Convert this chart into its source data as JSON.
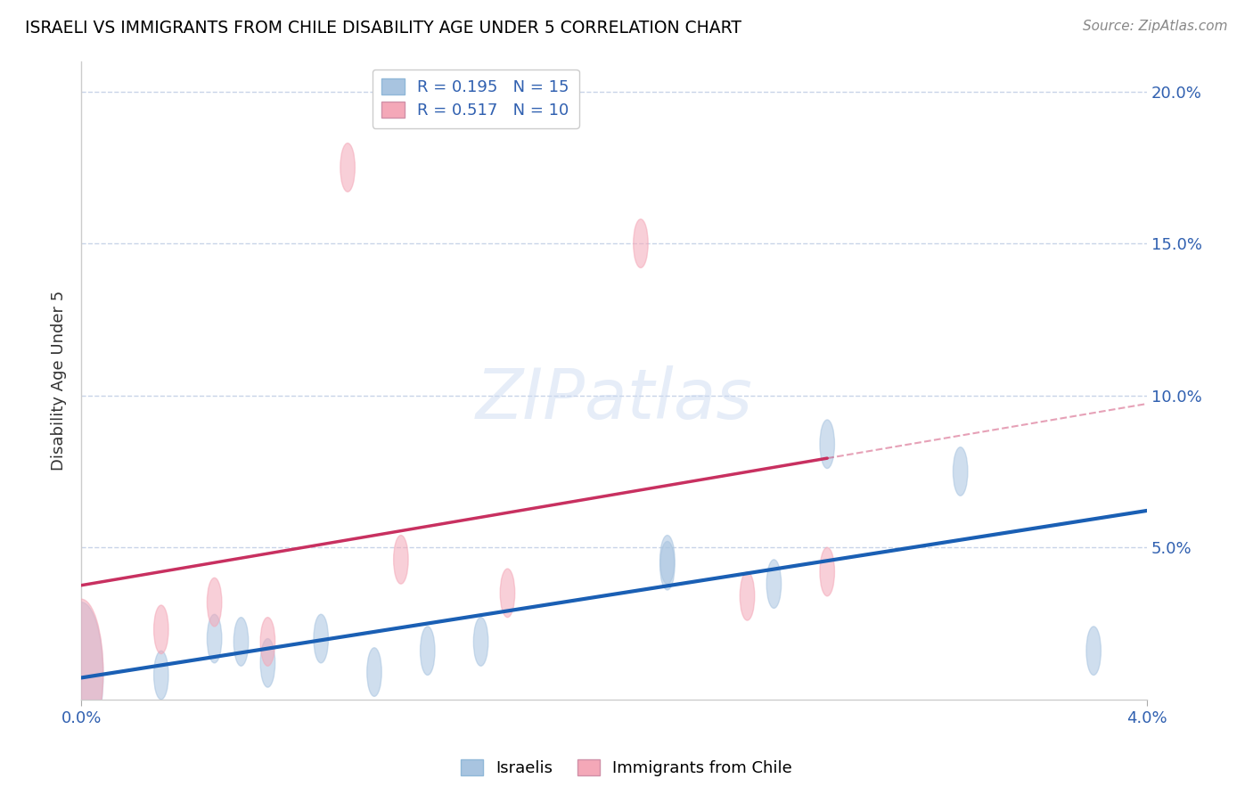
{
  "title": "ISRAELI VS IMMIGRANTS FROM CHILE DISABILITY AGE UNDER 5 CORRELATION CHART",
  "source": "Source: ZipAtlas.com",
  "ylabel": "Disability Age Under 5",
  "watermark": "ZIPatlas",
  "xlim": [
    0.0,
    0.04
  ],
  "ylim": [
    0.0,
    0.21
  ],
  "ytick_positions": [
    0.05,
    0.1,
    0.15,
    0.2
  ],
  "ytick_labels": [
    "5.0%",
    "10.0%",
    "15.0%",
    "20.0%"
  ],
  "legend_R_israelis": "R = 0.195",
  "legend_N_israelis": "N = 15",
  "legend_R_chile": "R = 0.517",
  "legend_N_chile": "N = 10",
  "israelis": {
    "color": "#a8c4e0",
    "trend_color": "#1a5fb4",
    "x": [
      0.0,
      0.003,
      0.005,
      0.006,
      0.007,
      0.009,
      0.011,
      0.013,
      0.015,
      0.022,
      0.022,
      0.026,
      0.028,
      0.033,
      0.038
    ],
    "y": [
      0.008,
      0.008,
      0.02,
      0.019,
      0.012,
      0.02,
      0.009,
      0.016,
      0.019,
      0.046,
      0.044,
      0.038,
      0.084,
      0.075,
      0.016
    ]
  },
  "chile": {
    "color": "#f4a8b8",
    "trend_color": "#c83060",
    "x": [
      0.0,
      0.003,
      0.005,
      0.007,
      0.01,
      0.012,
      0.016,
      0.021,
      0.025,
      0.028
    ],
    "y": [
      0.009,
      0.023,
      0.032,
      0.019,
      0.175,
      0.046,
      0.035,
      0.15,
      0.034,
      0.042
    ]
  },
  "background_color": "#ffffff",
  "grid_color": "#c8d4e8",
  "title_color": "#000000",
  "axis_label_color": "#3060b0",
  "tick_label_color": "#3060b0"
}
